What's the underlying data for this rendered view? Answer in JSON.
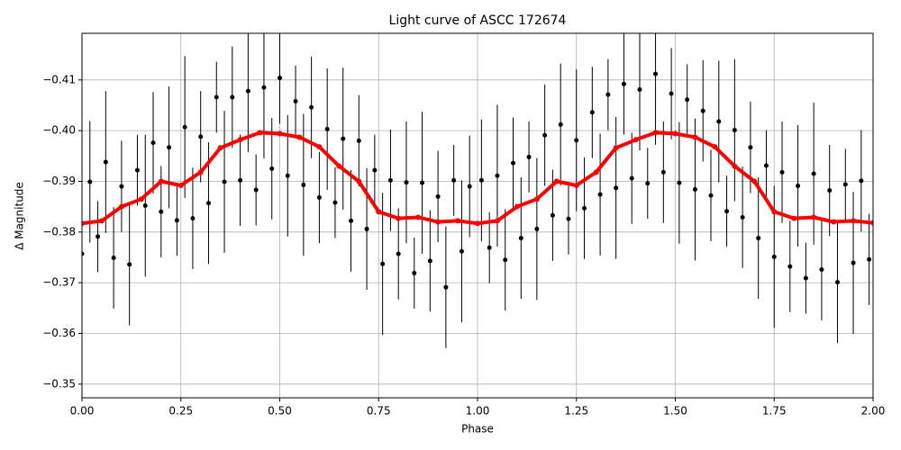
{
  "chart_data": {
    "type": "scatter",
    "title": "Light curve of ASCC 172674",
    "xlabel": "Phase",
    "ylabel": "Δ Magnitude",
    "xlim": [
      0,
      2
    ],
    "ylim": [
      -0.3473,
      -0.4192
    ],
    "xticks": [
      {
        "value": 0,
        "label": "0.00"
      },
      {
        "value": 0.25,
        "label": "0.25"
      },
      {
        "value": 0.5,
        "label": "0.50"
      },
      {
        "value": 0.75,
        "label": "0.75"
      },
      {
        "value": 1,
        "label": "1.00"
      },
      {
        "value": 1.25,
        "label": "1.25"
      },
      {
        "value": 1.5,
        "label": "1.50"
      },
      {
        "value": 1.75,
        "label": "1.75"
      },
      {
        "value": 2,
        "label": "2.00"
      }
    ],
    "yticks": [
      {
        "value": -0.41,
        "label": "−0.41"
      },
      {
        "value": -0.4,
        "label": "−0.40"
      },
      {
        "value": -0.39,
        "label": "−0.39"
      },
      {
        "value": -0.38,
        "label": "−0.38"
      },
      {
        "value": -0.37,
        "label": "−0.37"
      },
      {
        "value": -0.36,
        "label": "−0.36"
      },
      {
        "value": -0.35,
        "label": "−0.35"
      }
    ],
    "grid": true,
    "series": [
      {
        "color": "#000000",
        "x": [
          0,
          0.02,
          0.04,
          0.06,
          0.08,
          0.1,
          0.12,
          0.14,
          0.16,
          0.18,
          0.2,
          0.22,
          0.24,
          0.26,
          0.28,
          0.3,
          0.32,
          0.34,
          0.36,
          0.38,
          0.4,
          0.42,
          0.44,
          0.46,
          0.48,
          0.5,
          0.52,
          0.54,
          0.56,
          0.58,
          0.6,
          0.62,
          0.64,
          0.66,
          0.68,
          0.7,
          0.72,
          0.74,
          0.76,
          0.78,
          0.8,
          0.82,
          0.84,
          0.86,
          0.88,
          0.9,
          0.92,
          0.94,
          0.96,
          0.98,
          1.01,
          1.03,
          1.05,
          1.07,
          1.09,
          1.11,
          1.13,
          1.15,
          1.17,
          1.19,
          1.21,
          1.23,
          1.25,
          1.27,
          1.29,
          1.31,
          1.33,
          1.35,
          1.37,
          1.39,
          1.41,
          1.43,
          1.45,
          1.47,
          1.49,
          1.51,
          1.53,
          1.55,
          1.57,
          1.59,
          1.61,
          1.63,
          1.65,
          1.67,
          1.69,
          1.71,
          1.73,
          1.75,
          1.77,
          1.79,
          1.81,
          1.83,
          1.85,
          1.87,
          1.89,
          1.91,
          1.93,
          1.95,
          1.97,
          1.99
        ],
        "values": [
          -0.3757,
          -0.3899,
          -0.3791,
          -0.3938,
          -0.3749,
          -0.389,
          -0.3736,
          -0.3922,
          -0.3852,
          -0.3976,
          -0.384,
          -0.3967,
          -0.3823,
          -0.4007,
          -0.3827,
          -0.3988,
          -0.3857,
          -0.4066,
          -0.3899,
          -0.4066,
          -0.3902,
          -0.4078,
          -0.3883,
          -0.4085,
          -0.3925,
          -0.4104,
          -0.3911,
          -0.4058,
          -0.3893,
          -0.4046,
          -0.3868,
          -0.4003,
          -0.3858,
          -0.3984,
          -0.3822,
          -0.398,
          -0.3806,
          -0.3922,
          -0.3737,
          -0.3902,
          -0.3757,
          -0.3898,
          -0.3719,
          -0.3897,
          -0.3743,
          -0.387,
          -0.3691,
          -0.3902,
          -0.3762,
          -0.389,
          -0.3902,
          -0.3769,
          -0.3911,
          -0.3745,
          -0.3936,
          -0.3788,
          -0.3948,
          -0.3806,
          -0.3991,
          -0.3833,
          -0.4012,
          -0.3826,
          -0.3981,
          -0.3847,
          -0.4036,
          -0.3874,
          -0.4071,
          -0.3887,
          -0.4092,
          -0.3906,
          -0.4081,
          -0.3896,
          -0.4112,
          -0.3918,
          -0.4073,
          -0.3897,
          -0.4061,
          -0.3884,
          -0.4039,
          -0.3872,
          -0.4018,
          -0.3841,
          -0.4001,
          -0.3829,
          -0.3967,
          -0.3788,
          -0.3931,
          -0.3751,
          -0.3918,
          -0.3732,
          -0.3891,
          -0.3709,
          -0.3915,
          -0.3726,
          -0.3882,
          -0.3701,
          -0.3894,
          -0.3739,
          -0.3901,
          -0.3746
        ],
        "errors": [
          0.009,
          0.012,
          0.007,
          0.014,
          0.01,
          0.009,
          0.012,
          0.007,
          0.014,
          0.01,
          0.009,
          0.012,
          0.007,
          0.014,
          0.01,
          0.009,
          0.012,
          0.007,
          0.014,
          0.01,
          0.009,
          0.012,
          0.007,
          0.014,
          0.01,
          0.009,
          0.012,
          0.007,
          0.014,
          0.01,
          0.009,
          0.012,
          0.007,
          0.014,
          0.01,
          0.009,
          0.012,
          0.007,
          0.014,
          0.01,
          0.009,
          0.012,
          0.007,
          0.014,
          0.01,
          0.009,
          0.012,
          0.007,
          0.014,
          0.01,
          0.012,
          0.007,
          0.014,
          0.01,
          0.009,
          0.012,
          0.007,
          0.014,
          0.01,
          0.009,
          0.012,
          0.007,
          0.014,
          0.01,
          0.009,
          0.012,
          0.007,
          0.014,
          0.01,
          0.009,
          0.012,
          0.007,
          0.014,
          0.01,
          0.009,
          0.012,
          0.007,
          0.014,
          0.01,
          0.009,
          0.012,
          0.007,
          0.014,
          0.01,
          0.009,
          0.012,
          0.007,
          0.014,
          0.01,
          0.009,
          0.012,
          0.007,
          0.014,
          0.01,
          0.009,
          0.012,
          0.007,
          0.014,
          0.01,
          0.009
        ]
      },
      {
        "color": "#ff0000",
        "x": [
          0,
          0.05,
          0.1,
          0.15,
          0.2,
          0.25,
          0.3,
          0.35,
          0.4,
          0.45,
          0.5,
          0.55,
          0.6,
          0.65,
          0.7,
          0.75,
          0.8,
          0.85,
          0.9,
          0.95,
          1,
          1.05,
          1.1,
          1.15,
          1.2,
          1.25,
          1.3,
          1.35,
          1.4,
          1.45,
          1.5,
          1.55,
          1.6,
          1.65,
          1.7,
          1.75,
          1.8,
          1.85,
          1.9,
          1.95,
          2
        ],
        "values": [
          -0.3817,
          -0.3822,
          -0.385,
          -0.3865,
          -0.39,
          -0.3892,
          -0.3918,
          -0.3966,
          -0.3982,
          -0.3996,
          -0.3994,
          -0.3987,
          -0.3968,
          -0.393,
          -0.39,
          -0.384,
          -0.3827,
          -0.3829,
          -0.382,
          -0.3822,
          -0.3817,
          -0.3822,
          -0.385,
          -0.3865,
          -0.39,
          -0.3892,
          -0.3918,
          -0.3966,
          -0.3982,
          -0.3996,
          -0.3994,
          -0.3987,
          -0.3968,
          -0.393,
          -0.39,
          -0.384,
          -0.3827,
          -0.3829,
          -0.382,
          -0.3822,
          -0.3818
        ]
      }
    ]
  }
}
